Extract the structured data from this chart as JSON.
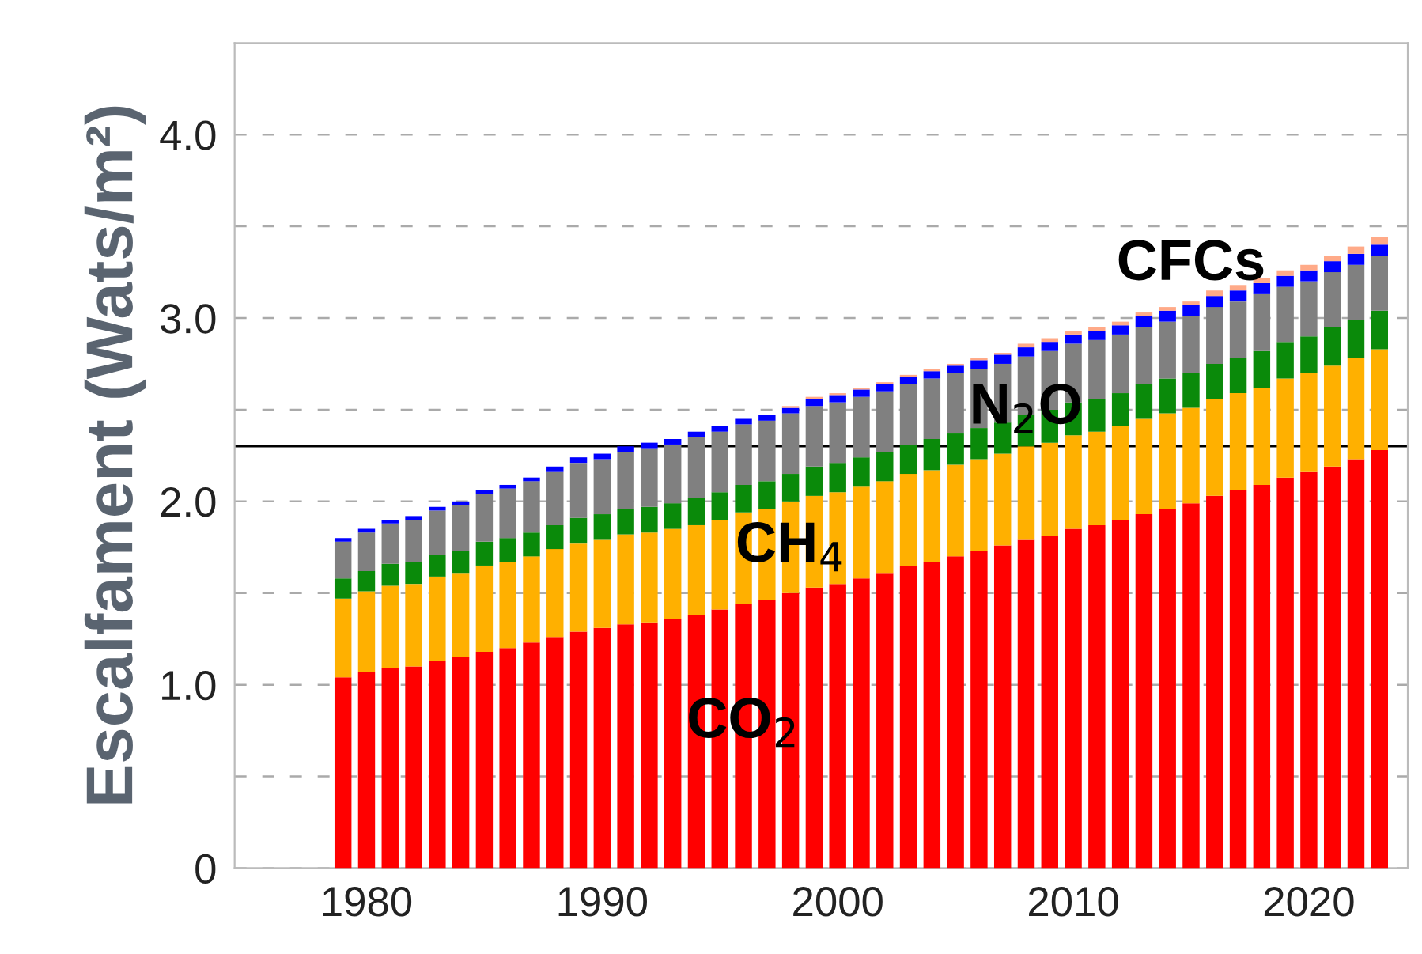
{
  "chart_data": {
    "type": "bar",
    "stacked": true,
    "ylabel": "Escalfament (Wats/m²)",
    "x": [
      1979,
      1980,
      1981,
      1982,
      1983,
      1984,
      1985,
      1986,
      1987,
      1988,
      1989,
      1990,
      1991,
      1992,
      1993,
      1994,
      1995,
      1996,
      1997,
      1998,
      1999,
      2000,
      2001,
      2002,
      2003,
      2004,
      2005,
      2006,
      2007,
      2008,
      2009,
      2010,
      2011,
      2012,
      2013,
      2014,
      2015,
      2016,
      2017,
      2018,
      2019,
      2020,
      2021,
      2022,
      2023
    ],
    "series": [
      {
        "name": "CO$_{2}$",
        "color": "#ff0000",
        "values": [
          1.04,
          1.07,
          1.09,
          1.1,
          1.13,
          1.15,
          1.18,
          1.2,
          1.23,
          1.26,
          1.29,
          1.31,
          1.33,
          1.34,
          1.36,
          1.38,
          1.41,
          1.44,
          1.46,
          1.5,
          1.53,
          1.55,
          1.58,
          1.61,
          1.65,
          1.67,
          1.7,
          1.73,
          1.76,
          1.79,
          1.81,
          1.85,
          1.87,
          1.9,
          1.93,
          1.96,
          1.99,
          2.03,
          2.06,
          2.09,
          2.13,
          2.16,
          2.19,
          2.23,
          2.28
        ]
      },
      {
        "name": "CH$_{4}$",
        "color": "#ffb000",
        "values": [
          0.43,
          0.44,
          0.45,
          0.45,
          0.46,
          0.46,
          0.47,
          0.47,
          0.47,
          0.48,
          0.48,
          0.48,
          0.49,
          0.49,
          0.49,
          0.49,
          0.49,
          0.5,
          0.5,
          0.5,
          0.5,
          0.5,
          0.5,
          0.5,
          0.5,
          0.5,
          0.5,
          0.5,
          0.5,
          0.51,
          0.51,
          0.51,
          0.51,
          0.51,
          0.52,
          0.52,
          0.52,
          0.53,
          0.53,
          0.53,
          0.54,
          0.54,
          0.55,
          0.55,
          0.55
        ]
      },
      {
        "name": "N$_{2}$O",
        "color": "#0a8a0a",
        "values": [
          0.11,
          0.11,
          0.12,
          0.12,
          0.12,
          0.12,
          0.13,
          0.13,
          0.13,
          0.13,
          0.14,
          0.14,
          0.14,
          0.14,
          0.14,
          0.15,
          0.15,
          0.15,
          0.15,
          0.15,
          0.16,
          0.16,
          0.16,
          0.16,
          0.16,
          0.17,
          0.17,
          0.17,
          0.17,
          0.17,
          0.18,
          0.18,
          0.18,
          0.18,
          0.19,
          0.19,
          0.19,
          0.19,
          0.19,
          0.2,
          0.2,
          0.2,
          0.21,
          0.21,
          0.21
        ]
      },
      {
        "name": "CFCs",
        "color": "#808080",
        "values": [
          0.2,
          0.21,
          0.22,
          0.23,
          0.24,
          0.25,
          0.26,
          0.27,
          0.28,
          0.29,
          0.3,
          0.3,
          0.31,
          0.32,
          0.32,
          0.33,
          0.33,
          0.33,
          0.33,
          0.33,
          0.33,
          0.33,
          0.33,
          0.33,
          0.33,
          0.33,
          0.33,
          0.32,
          0.32,
          0.32,
          0.32,
          0.32,
          0.32,
          0.32,
          0.31,
          0.31,
          0.31,
          0.31,
          0.31,
          0.31,
          0.3,
          0.3,
          0.3,
          0.3,
          0.3
        ]
      },
      {
        "color": "#0000ff",
        "values": [
          0.02,
          0.02,
          0.02,
          0.02,
          0.02,
          0.02,
          0.02,
          0.02,
          0.02,
          0.03,
          0.03,
          0.03,
          0.03,
          0.03,
          0.03,
          0.03,
          0.03,
          0.03,
          0.03,
          0.03,
          0.04,
          0.04,
          0.04,
          0.04,
          0.04,
          0.04,
          0.04,
          0.05,
          0.05,
          0.05,
          0.05,
          0.05,
          0.05,
          0.05,
          0.06,
          0.06,
          0.06,
          0.06,
          0.06,
          0.06,
          0.06,
          0.06,
          0.06,
          0.06,
          0.06
        ]
      },
      {
        "color": "#ffaa88",
        "values": [
          0.0,
          0.0,
          0.0,
          0.0,
          0.0,
          0.0,
          0.0,
          0.0,
          0.0,
          0.0,
          0.0,
          0.0,
          0.0,
          0.0,
          0.0,
          0.0,
          0.0,
          0.0,
          0.0,
          0.01,
          0.01,
          0.01,
          0.01,
          0.01,
          0.01,
          0.01,
          0.01,
          0.01,
          0.01,
          0.02,
          0.02,
          0.02,
          0.02,
          0.02,
          0.02,
          0.02,
          0.02,
          0.03,
          0.03,
          0.03,
          0.03,
          0.03,
          0.03,
          0.04,
          0.04
        ]
      }
    ],
    "ylim": [
      0,
      4.5
    ],
    "yticks": [
      0,
      {
        "value": 0.5,
        "label": null
      },
      {
        "value": 1.0,
        "label": "1.0"
      },
      {
        "value": 1.5,
        "label": null
      },
      {
        "value": 2.0,
        "label": "2.0"
      },
      {
        "value": 2.5,
        "label": null
      },
      {
        "value": 3.0,
        "label": "3.0"
      },
      {
        "value": 3.5,
        "label": null
      },
      {
        "value": 4.0,
        "label": "4.0"
      }
    ],
    "xlim": [
      1974.4,
      2024.2
    ],
    "xticks": [
      1980,
      1990,
      2000,
      2010,
      2020
    ],
    "grid": "y",
    "ref_lines": [
      {
        "axis": "y",
        "value": 2.3,
        "color": "#000000"
      }
    ]
  }
}
